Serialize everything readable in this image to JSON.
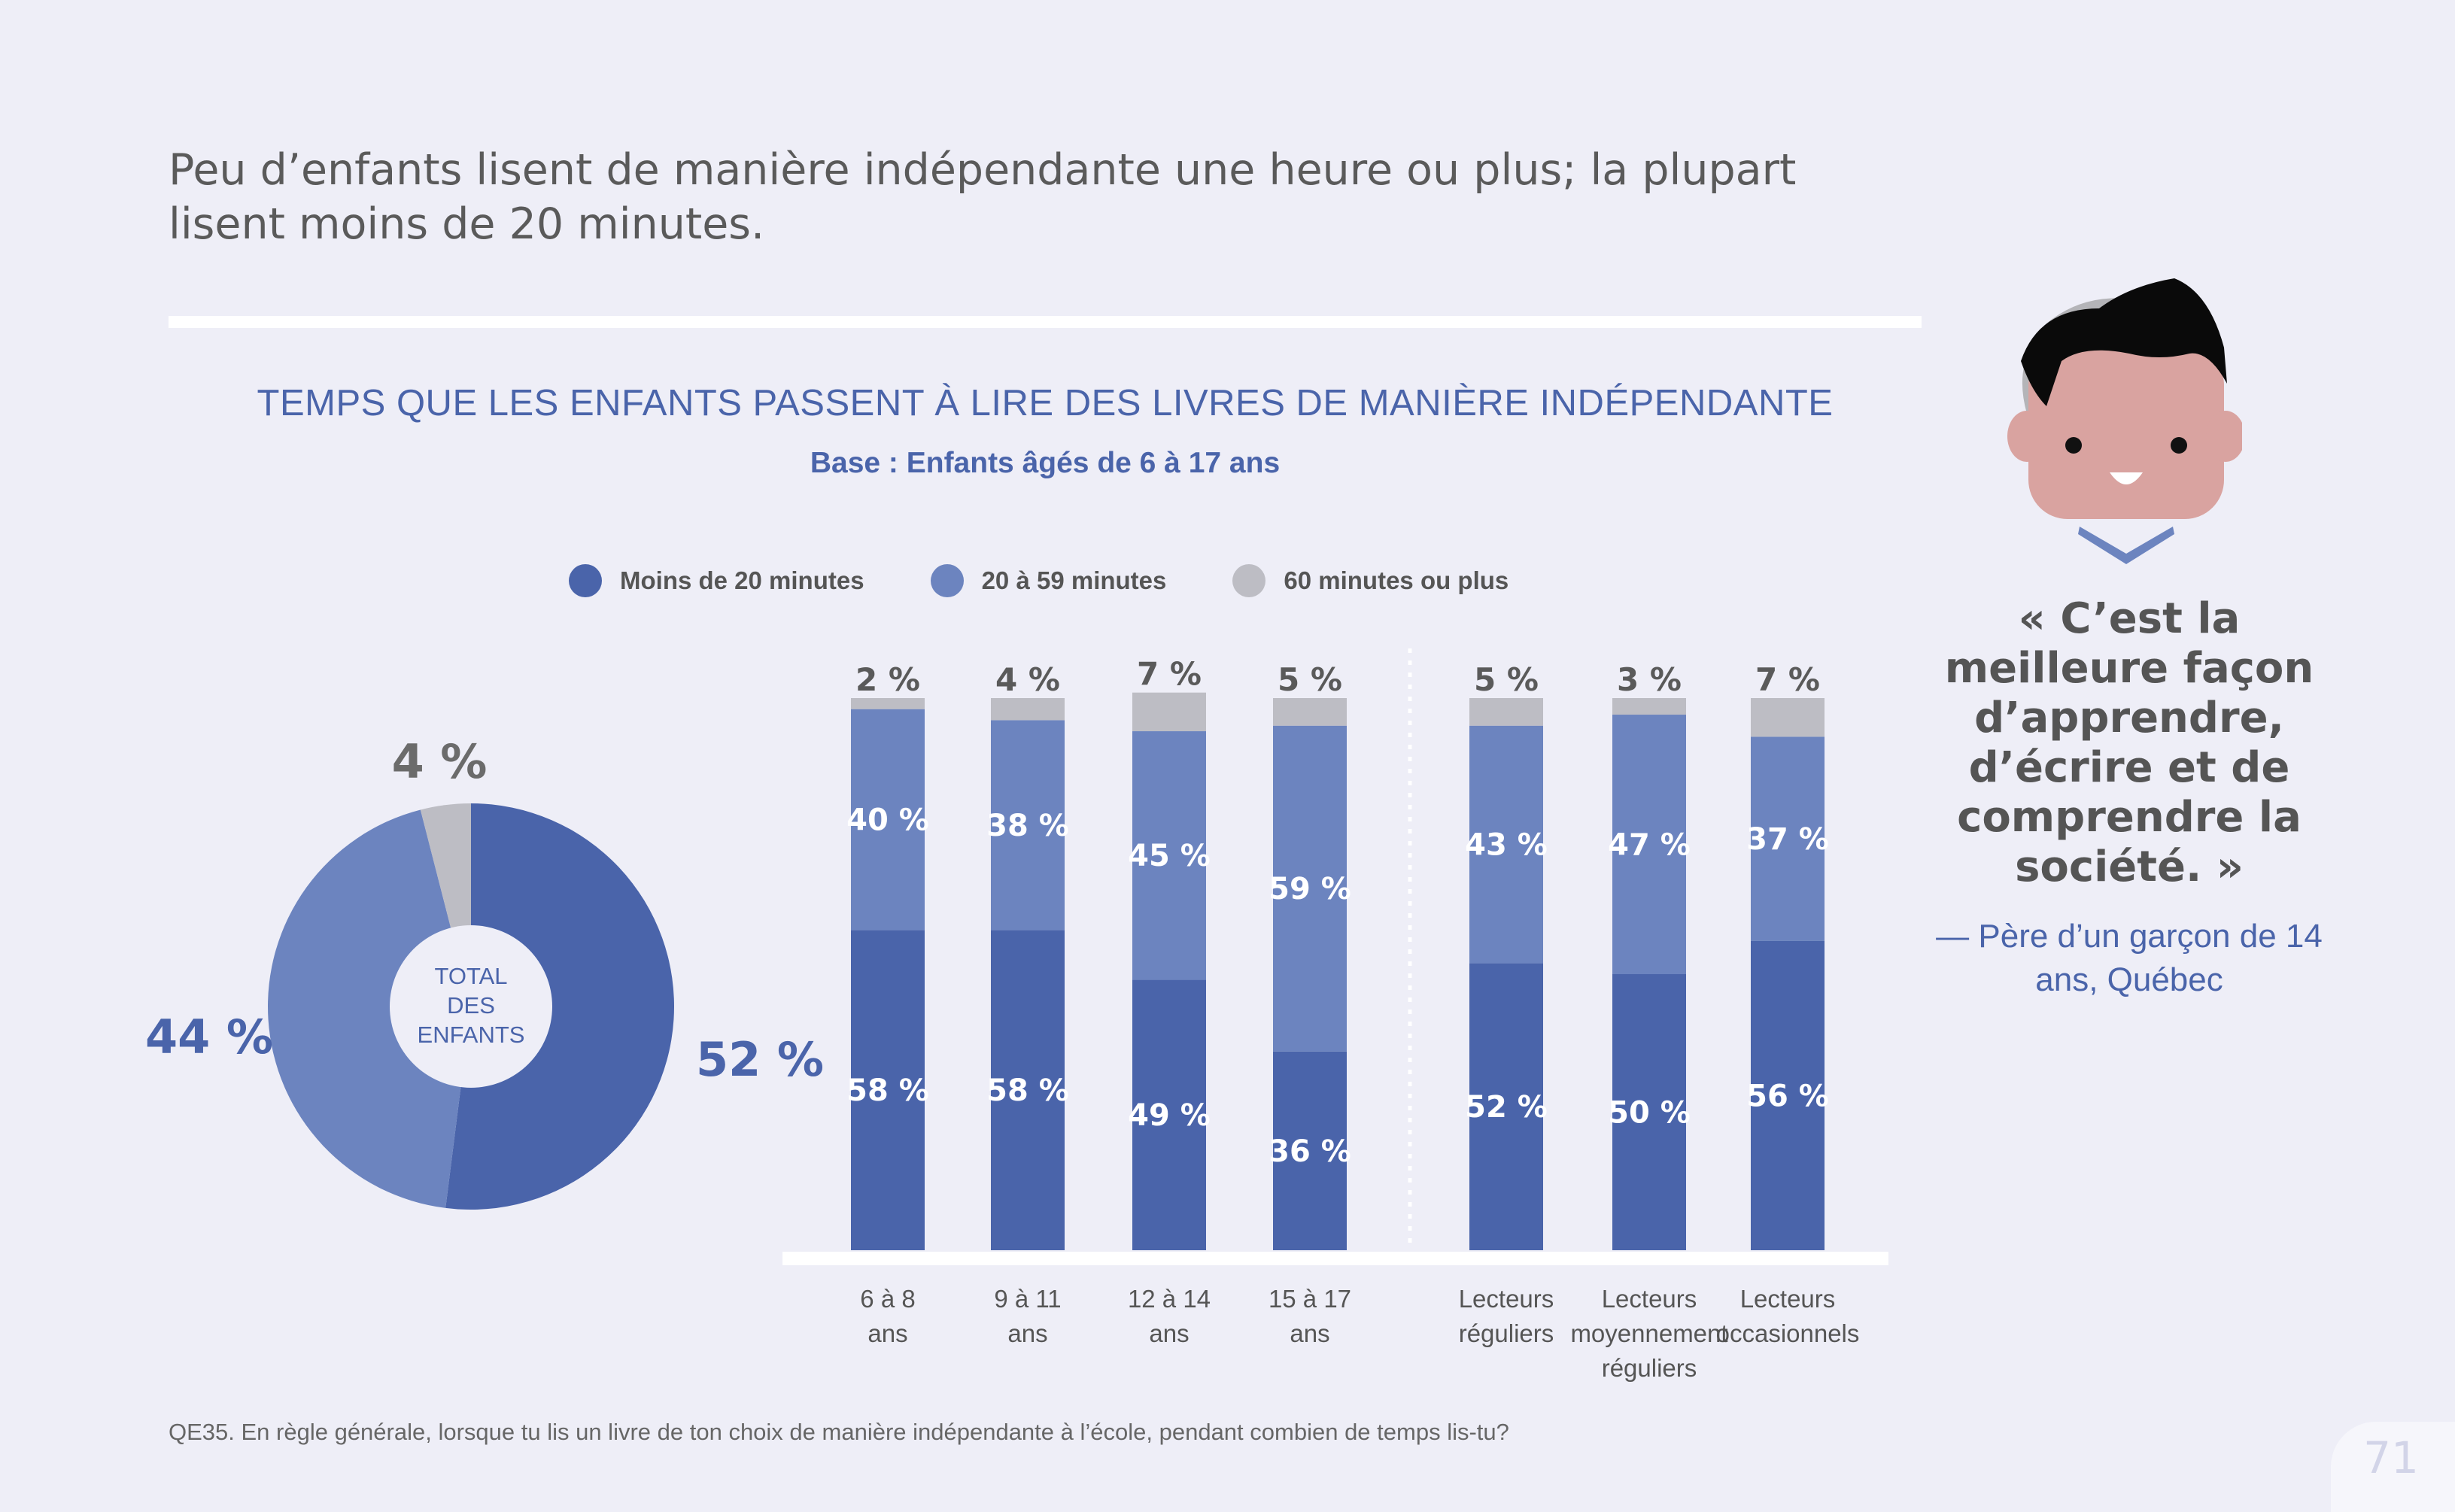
{
  "headline": "Peu d’enfants lisent de manière indépendante une heure ou plus; la plupart lisent moins de 20 minutes.",
  "chart_title": "TEMPS QUE LES ENFANTS PASSENT À LIRE DES LIVRES DE MANIÈRE INDÉPENDANTE",
  "chart_subtitle": "Base : Enfants âgés de 6 à 17 ans",
  "legend": [
    {
      "label": "Moins de 20 minutes",
      "color": "#4a64aa"
    },
    {
      "label": "20 à 59 minutes",
      "color": "#6c84bf"
    },
    {
      "label": "60 minutes ou plus",
      "color": "#bdbdc4"
    }
  ],
  "chart_data": [
    {
      "type": "pie",
      "center_label": [
        "TOTAL",
        "DES",
        "ENFANTS"
      ],
      "slices": [
        {
          "name": "Moins de 20 minutes",
          "value": 52,
          "label": "52 %"
        },
        {
          "name": "20 à 59 minutes",
          "value": 44,
          "label": "44 %"
        },
        {
          "name": "60 minutes ou plus",
          "value": 4,
          "label": "4 %"
        }
      ]
    },
    {
      "type": "bar",
      "stacked": true,
      "groups": [
        {
          "categories": [
            [
              "6 à 8",
              "ans"
            ],
            [
              "9 à 11",
              "ans"
            ],
            [
              "12 à 14",
              "ans"
            ],
            [
              "15 à 17",
              "ans"
            ]
          ],
          "series": [
            {
              "name": "Moins de 20 minutes",
              "values": [
                58,
                58,
                49,
                36
              ]
            },
            {
              "name": "20 à 59 minutes",
              "values": [
                40,
                38,
                45,
                59
              ]
            },
            {
              "name": "60 minutes ou plus",
              "values": [
                2,
                4,
                7,
                5
              ]
            }
          ]
        },
        {
          "categories": [
            [
              "Lecteurs",
              "réguliers"
            ],
            [
              "Lecteurs",
              "moyennement",
              "réguliers"
            ],
            [
              "Lecteurs",
              "occasionnels"
            ]
          ],
          "series": [
            {
              "name": "Moins de 20 minutes",
              "values": [
                52,
                50,
                56
              ]
            },
            {
              "name": "20 à 59 minutes",
              "values": [
                43,
                47,
                37
              ]
            },
            {
              "name": "60 minutes ou plus",
              "values": [
                5,
                3,
                7
              ]
            }
          ]
        }
      ],
      "ylim": [
        0,
        100
      ],
      "grid": false
    }
  ],
  "quote": "« C’est la meilleure façon d’apprendre, d’écrire et de comprendre la société. »",
  "quote_attribution": "— Père d’un garçon de 14 ans, Québec",
  "footnote": "QE35. En règle générale, lorsque tu lis un livre de ton choix de manière indépendante à l’école, pendant combien de temps lis-tu?",
  "page_number": "71"
}
